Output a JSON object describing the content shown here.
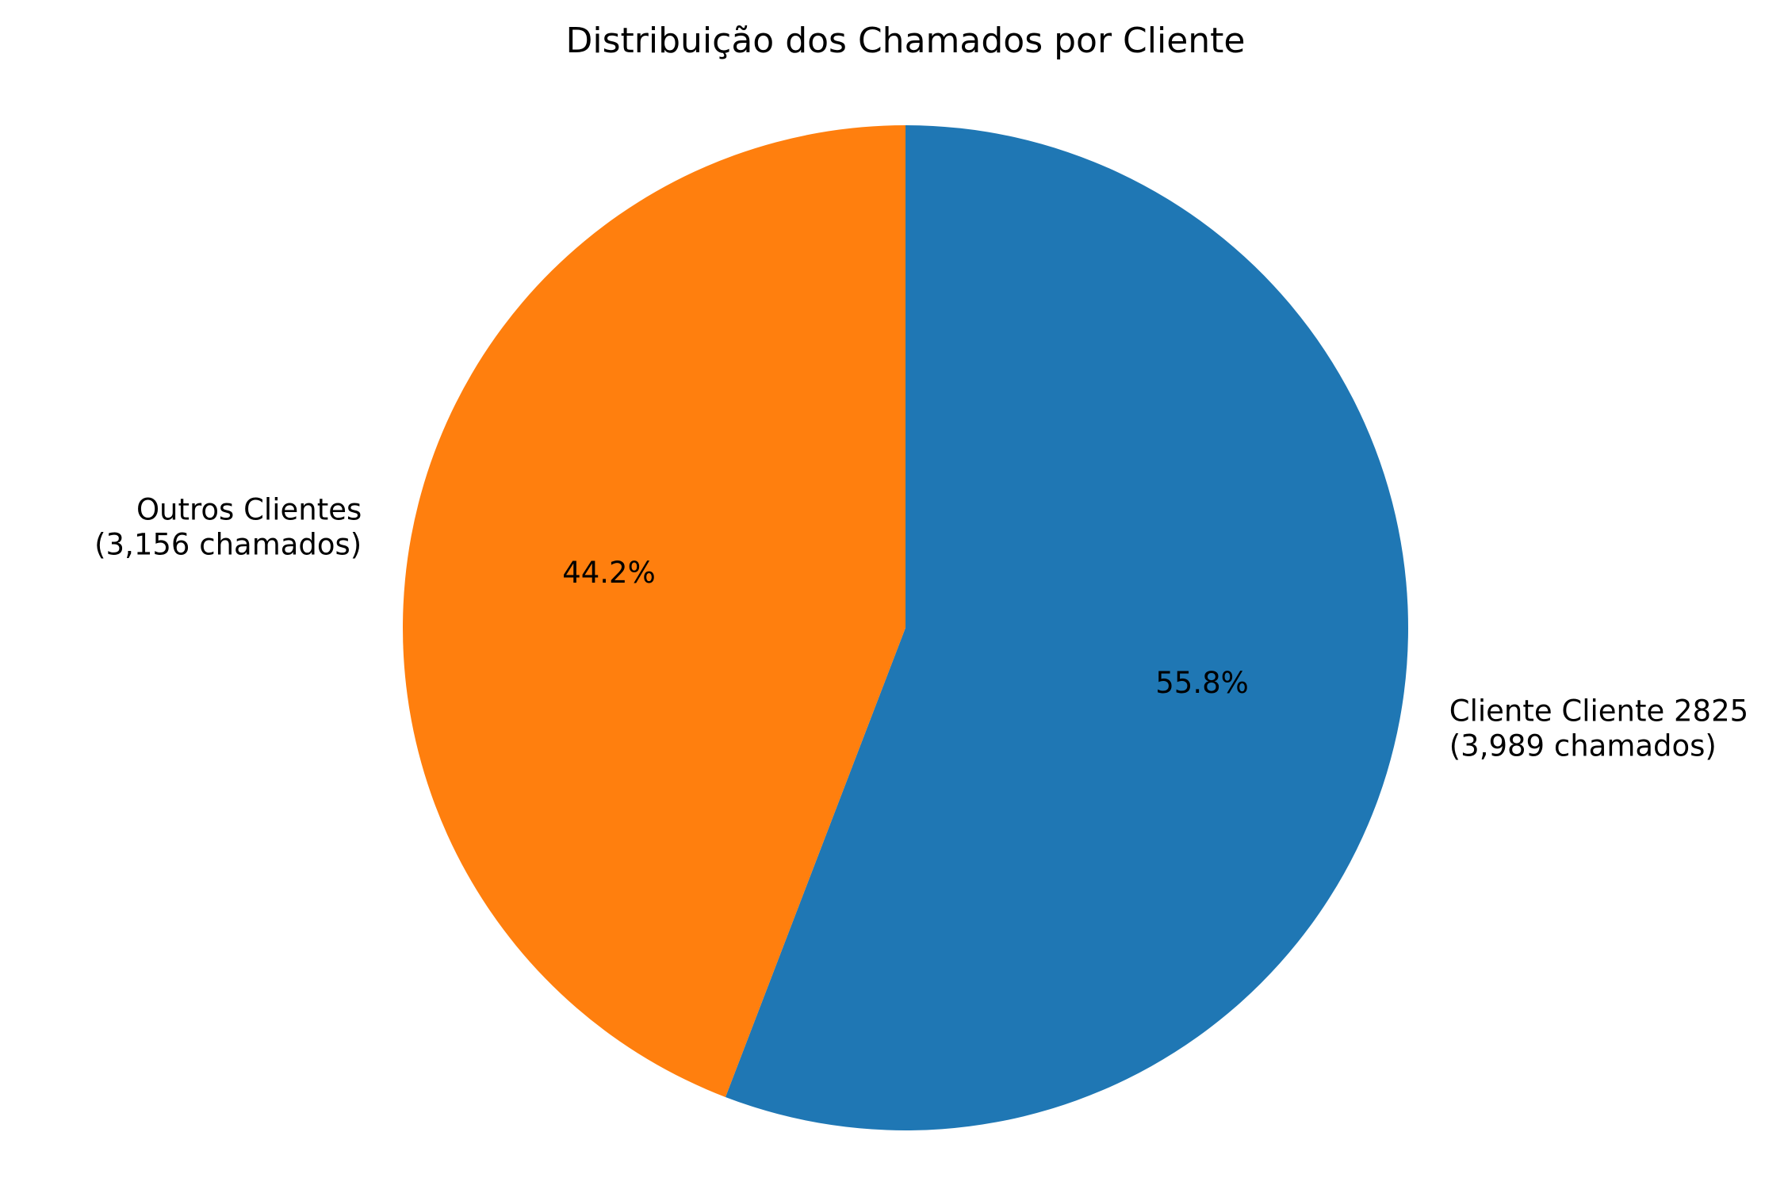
{
  "chart_data": {
    "type": "pie",
    "title": "Distribuição dos Chamados por Cliente",
    "start_angle_deg": 90,
    "direction": "clockwise",
    "legend": "none",
    "slices": [
      {
        "label_lines": [
          "Cliente Cliente 2825",
          "(3,989 chamados)"
        ],
        "value": 3989,
        "percent_label": "55.8%",
        "color": "#1f77b4"
      },
      {
        "label_lines": [
          "Outros Clientes",
          "(3,156 chamados)"
        ],
        "value": 3156,
        "percent_label": "44.2%",
        "color": "#ff7f0e"
      }
    ]
  }
}
